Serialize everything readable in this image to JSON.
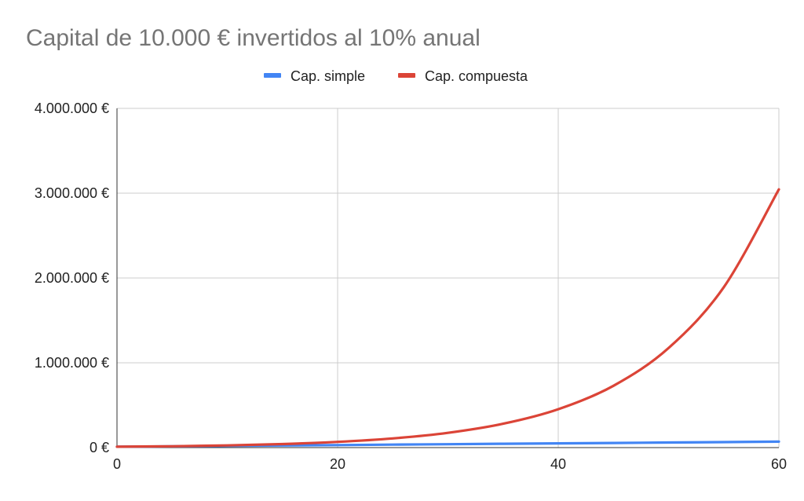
{
  "chart_data": {
    "type": "line",
    "title": "Capital de 10.000 € invertidos al 10% anual",
    "xlabel": "",
    "ylabel": "",
    "xlim": [
      0,
      60
    ],
    "ylim": [
      0,
      4000000
    ],
    "x_ticks": [
      "0",
      "20",
      "40",
      "60"
    ],
    "x_tick_values": [
      0,
      20,
      40,
      60
    ],
    "y_ticks": [
      "0 €",
      "1.000.000 €",
      "2.000.000 €",
      "3.000.000 €",
      "4.000.000 €"
    ],
    "y_tick_values": [
      0,
      1000000,
      2000000,
      3000000,
      4000000
    ],
    "grid": true,
    "legend_position": "top",
    "x": [
      0,
      5,
      10,
      15,
      20,
      25,
      30,
      35,
      40,
      45,
      50,
      55,
      60
    ],
    "series": [
      {
        "name": "Cap. simple",
        "color": "#4285f4",
        "values": [
          10000,
          15000,
          20000,
          25000,
          30000,
          35000,
          40000,
          45000,
          50000,
          55000,
          60000,
          65000,
          70000
        ]
      },
      {
        "name": "Cap. compuesta",
        "color": "#db4437",
        "values": [
          10000,
          16105,
          25937,
          41772,
          67275,
          108347,
          174494,
          281024,
          452593,
          728905,
          1173909,
          1890591,
          3044816
        ]
      }
    ]
  }
}
